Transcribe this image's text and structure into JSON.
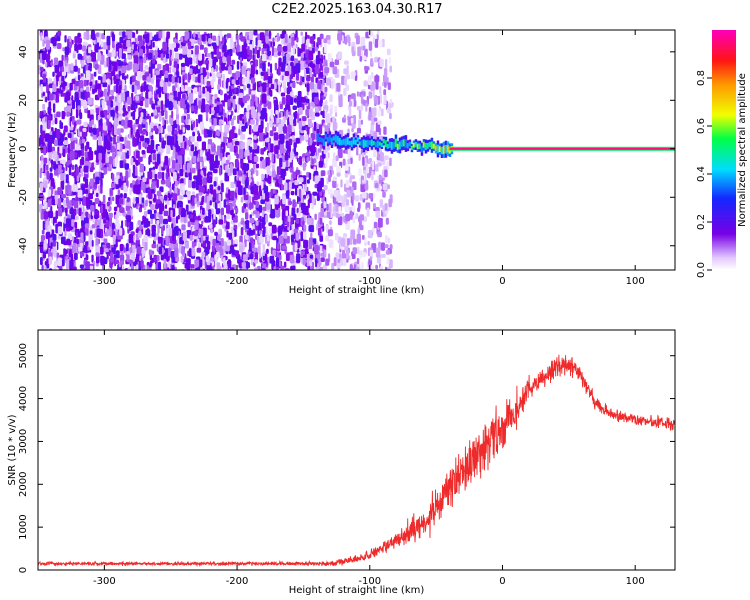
{
  "title": "C2E2.2025.163.04.30.R17",
  "colors": {
    "axis": "#000000",
    "snr_line": "#ee2a2a",
    "background": "#ffffff"
  },
  "chart_data": [
    {
      "type": "heatmap",
      "xlabel": "Height of straight line (km)",
      "ylabel": "Frequency (Hz)",
      "xlim": [
        -350,
        130
      ],
      "ylim": [
        -50,
        49
      ],
      "xticks": [
        -300,
        -200,
        -100,
        0,
        100
      ],
      "yticks": [
        -40,
        -20,
        0,
        20,
        40
      ],
      "colorbar": {
        "label": "Normalized spectral amplitude",
        "range": [
          0,
          1
        ],
        "ticks": [
          0.0,
          0.2,
          0.4,
          0.6,
          0.8
        ],
        "colormap": "rainbow: white, violet, blue, cyan, green, yellow, orange, red, magenta"
      },
      "features": [
        {
          "name": "noise",
          "x_range": [
            -350,
            -135
          ],
          "freq_range": [
            -50,
            49
          ],
          "amplitude": 0.15
        },
        {
          "name": "sparse noise",
          "x_range": [
            -135,
            -85
          ],
          "freq_range": [
            -50,
            49
          ],
          "amplitude": 0.08
        },
        {
          "name": "carrier onset",
          "x_range": [
            -140,
            -40
          ],
          "freq_center": 4,
          "freq_end": 0,
          "amplitude": 0.5
        },
        {
          "name": "carrier",
          "x_range": [
            -40,
            130
          ],
          "freq_center": 0,
          "amplitude": 0.95
        }
      ]
    },
    {
      "type": "line",
      "xlabel": "Height of straight line (km)",
      "ylabel": "SNR (10 * v/v)",
      "xlim": [
        -350,
        130
      ],
      "ylim": [
        0,
        5600
      ],
      "xticks": [
        -300,
        -200,
        -100,
        0,
        100
      ],
      "yticks": [
        0,
        1000,
        2000,
        3000,
        4000,
        5000
      ],
      "series": [
        {
          "points": [
            [
              -350,
              150
            ],
            [
              -200,
              150
            ],
            [
              -130,
              150
            ],
            [
              -110,
              250
            ],
            [
              -100,
              350
            ],
            [
              -90,
              500
            ],
            [
              -80,
              700
            ],
            [
              -60,
              1100
            ],
            [
              -40,
              1800
            ],
            [
              -30,
              2300
            ],
            [
              -15,
              2800
            ],
            [
              -5,
              3200
            ],
            [
              0,
              3300
            ],
            [
              10,
              3700
            ],
            [
              20,
              4200
            ],
            [
              35,
              4600
            ],
            [
              45,
              4800
            ],
            [
              55,
              4700
            ],
            [
              60,
              4500
            ],
            [
              70,
              3900
            ],
            [
              80,
              3650
            ],
            [
              100,
              3500
            ],
            [
              130,
              3400
            ]
          ],
          "noise": [
            [
              -350,
              60
            ],
            [
              -200,
              60
            ],
            [
              -130,
              80
            ],
            [
              -100,
              150
            ],
            [
              -60,
              500
            ],
            [
              -30,
              900
            ],
            [
              0,
              800
            ],
            [
              20,
              400
            ],
            [
              50,
              350
            ],
            [
              70,
              250
            ],
            [
              100,
              200
            ],
            [
              130,
              200
            ]
          ]
        }
      ]
    }
  ]
}
